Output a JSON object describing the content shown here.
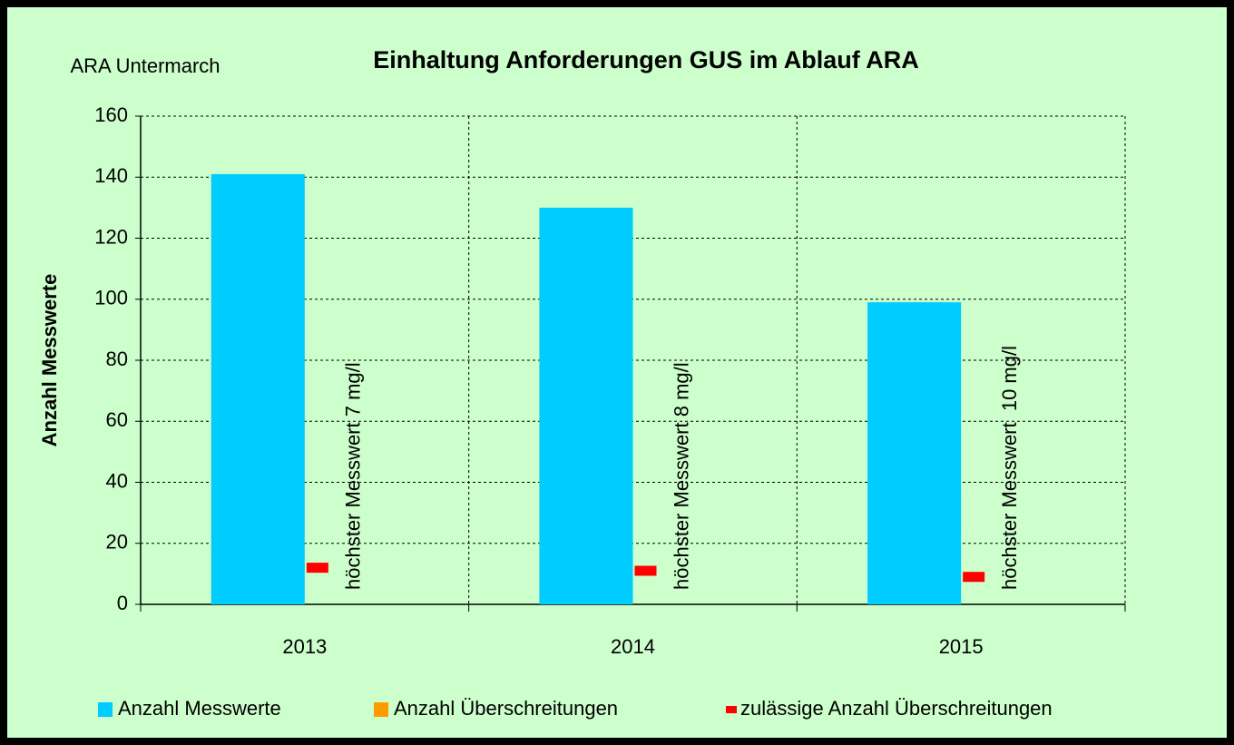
{
  "chart_data": {
    "type": "bar",
    "title": "Einhaltung Anforderungen GUS im Ablauf ARA",
    "subtitle": "ARA Untermarch",
    "y_label": "Anzahl Messwerte",
    "categories": [
      "2013",
      "2014",
      "2015"
    ],
    "series": [
      {
        "name": "Anzahl Messwerte",
        "color": "#00ccff",
        "values": [
          141,
          130,
          99
        ],
        "mark": "bar"
      },
      {
        "name": "Anzahl Überschreitungen",
        "color": "#ff9900",
        "values": [
          0,
          0,
          0
        ],
        "mark": "bar"
      },
      {
        "name": "zulässige Anzahl Überschreitungen",
        "color": "#ff0000",
        "values": [
          12,
          11,
          9
        ],
        "mark": "dash"
      }
    ],
    "annotations": [
      "höchster Messwert 7 mg/l",
      "höchster Messwert 8 mg/l",
      "höchster Messwert  10 mg/l"
    ],
    "ylim": [
      0,
      160
    ],
    "yticks": [
      0,
      20,
      40,
      60,
      80,
      100,
      120,
      140,
      160
    ],
    "grid": true,
    "legend": "bottom"
  }
}
